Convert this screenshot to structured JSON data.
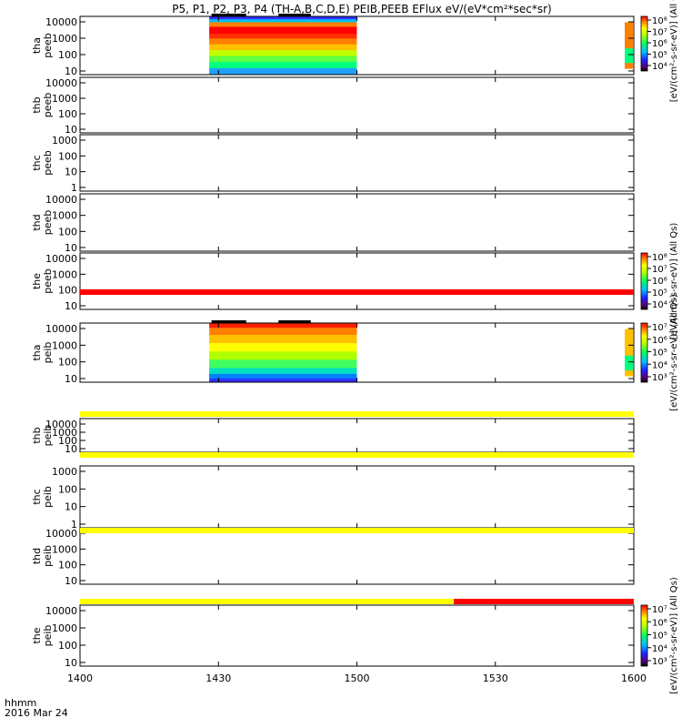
{
  "title": "P5, P1, P2, P3, P4 (TH-A,B,C,D,E) PEIB,PEEB EFlux eV/(eV*cm²*sec*sr)",
  "footer": {
    "label_time": "hhmm",
    "label_date": "2016 Mar 24"
  },
  "chart_data": {
    "type": "heatmap",
    "title": "P5, P1, P2, P3, P4 (TH-A,B,C,D,E) PEIB,PEEB EFlux eV/(eV*cm²*sec*sr)",
    "x_ticks": [
      "1400",
      "1430",
      "1500",
      "1530",
      "1600"
    ],
    "x_range_minutes": [
      0,
      120
    ],
    "x_tick_minutes": [
      0,
      30,
      60,
      90,
      120
    ],
    "colors": {
      "red": "#ff0000",
      "yellow": "#ffff00",
      "black": "#000000",
      "blue": "#0000ff"
    },
    "colorbars": [
      {
        "label": "[eV/(cm²-s-sr-eV)] (All Qs)",
        "ticks": [
          "10⁸",
          "10⁷",
          "10⁶",
          "10⁵",
          "10⁴"
        ]
      },
      {
        "label": "[eV/(cm²-s-sr-eV)] (All Qs)",
        "ticks": [
          "10⁸",
          "10⁷",
          "10⁶",
          "10⁵",
          "10⁴"
        ]
      },
      {
        "label": "[eV/(cm²-s-sr-eV)] (All Qs)",
        "ticks": [
          "10⁷",
          "10⁶",
          "10⁵",
          "10⁴",
          "10³"
        ]
      },
      {
        "label": "[eV/(cm²-s-sr-eV)] (All Qs)",
        "ticks": [
          "10⁷",
          "10⁶",
          "10⁵",
          "10⁴",
          "10³"
        ]
      }
    ],
    "panels": [
      {
        "probe": "tha",
        "instrument": "peeb",
        "yticks": [
          "10000",
          "1000",
          "100",
          "10"
        ],
        "data_window": [
          28,
          60
        ]
      },
      {
        "probe": "thb",
        "instrument": "peeb",
        "yticks": [
          "10000",
          "1000",
          "100",
          "10"
        ]
      },
      {
        "probe": "thc",
        "instrument": "peeb",
        "yticks": [
          "1000",
          "100",
          "10",
          "1"
        ]
      },
      {
        "probe": "thd",
        "instrument": "peeb",
        "yticks": [
          "10000",
          "1000",
          "100",
          "10"
        ]
      },
      {
        "probe": "the",
        "instrument": "peeb",
        "yticks": [
          "10000",
          "1000",
          "100",
          "10"
        ]
      },
      {
        "probe": "tha",
        "instrument": "peib",
        "yticks": [
          "10000",
          "1000",
          "100",
          "10"
        ],
        "data_window": [
          28,
          60
        ]
      },
      {
        "probe": "thb",
        "instrument": "peib",
        "yticks": [
          "10000",
          "1000",
          "100",
          "10"
        ]
      },
      {
        "probe": "thc",
        "instrument": "peib",
        "yticks": [
          "1000",
          "100",
          "10",
          "1"
        ]
      },
      {
        "probe": "thd",
        "instrument": "peib",
        "yticks": [
          "10000",
          "1000",
          "100",
          "10"
        ]
      },
      {
        "probe": "the",
        "instrument": "peib",
        "yticks": [
          "10000",
          "1000",
          "100",
          "10"
        ]
      }
    ],
    "flag_bars": [
      {
        "after_panel": 4,
        "segments": [
          {
            "start": 0,
            "end": 120,
            "color": "red"
          }
        ]
      },
      {
        "after_panel": 5,
        "segments": [
          {
            "start": 0,
            "end": 120,
            "color": "yellow"
          }
        ]
      },
      {
        "after_panel": 6,
        "segments": [
          {
            "start": 0,
            "end": 120,
            "color": "yellow"
          }
        ]
      },
      {
        "after_panel": 7,
        "segments": [
          {
            "start": 0,
            "end": 120,
            "color": "yellow"
          }
        ]
      },
      {
        "after_panel": 8,
        "segments": [
          {
            "start": 0,
            "end": 81,
            "color": "yellow"
          },
          {
            "start": 81,
            "end": 120,
            "color": "red"
          }
        ]
      }
    ]
  }
}
